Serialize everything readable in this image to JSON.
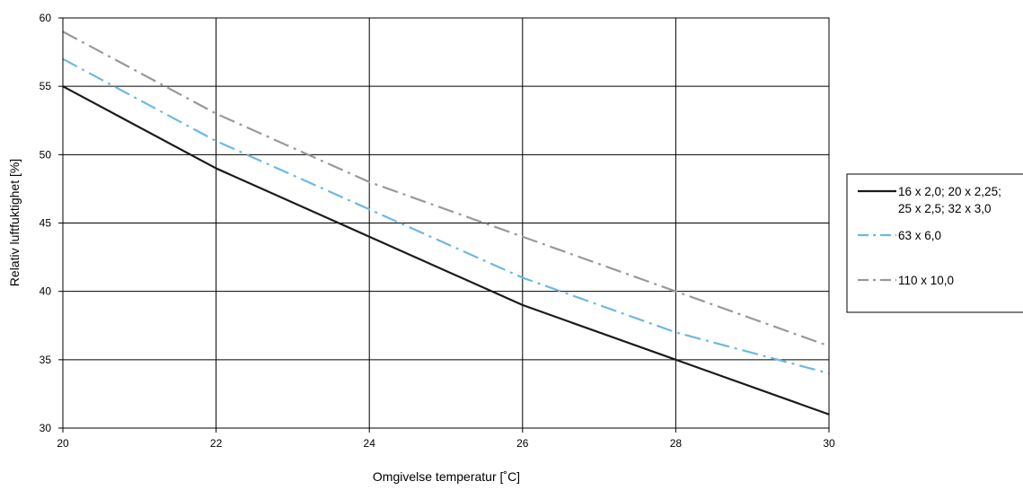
{
  "chart_data": {
    "type": "line",
    "title": "",
    "xlabel": "Omgivelse temperatur [˚C]",
    "ylabel": "Relativ luftfuktighet [%]",
    "xlim": [
      20,
      30
    ],
    "ylim": [
      30,
      60
    ],
    "xticks": [
      20,
      22,
      24,
      26,
      28,
      30
    ],
    "yticks": [
      30,
      35,
      40,
      45,
      50,
      55,
      60
    ],
    "grid": true,
    "legend_position": "right",
    "series": [
      {
        "name": "16 x 2,0; 20 x 2,25; 25 x 2,5; 32 x 3,0",
        "legend_lines": [
          "16 x 2,0; 20 x 2,25;",
          "25 x 2,5; 32 x 3,0"
        ],
        "color": "#1a1a1a",
        "dash": "solid",
        "x": [
          20,
          22,
          24,
          26,
          28,
          30
        ],
        "y": [
          55,
          49,
          44,
          39,
          35,
          31
        ]
      },
      {
        "name": "63 x 6,0",
        "legend_lines": [
          "63 x 6,0"
        ],
        "color": "#6db8e2",
        "dash": "dash-dot",
        "x": [
          20,
          22,
          24,
          26,
          28,
          30
        ],
        "y": [
          57,
          51,
          46,
          41,
          37,
          34
        ]
      },
      {
        "name": "110 x 10,0",
        "legend_lines": [
          "110 x 10,0"
        ],
        "color": "#999999",
        "dash": "dash-dot",
        "x": [
          20,
          22,
          24,
          26,
          28,
          30
        ],
        "y": [
          59,
          53,
          48,
          44,
          40,
          36
        ]
      }
    ]
  }
}
